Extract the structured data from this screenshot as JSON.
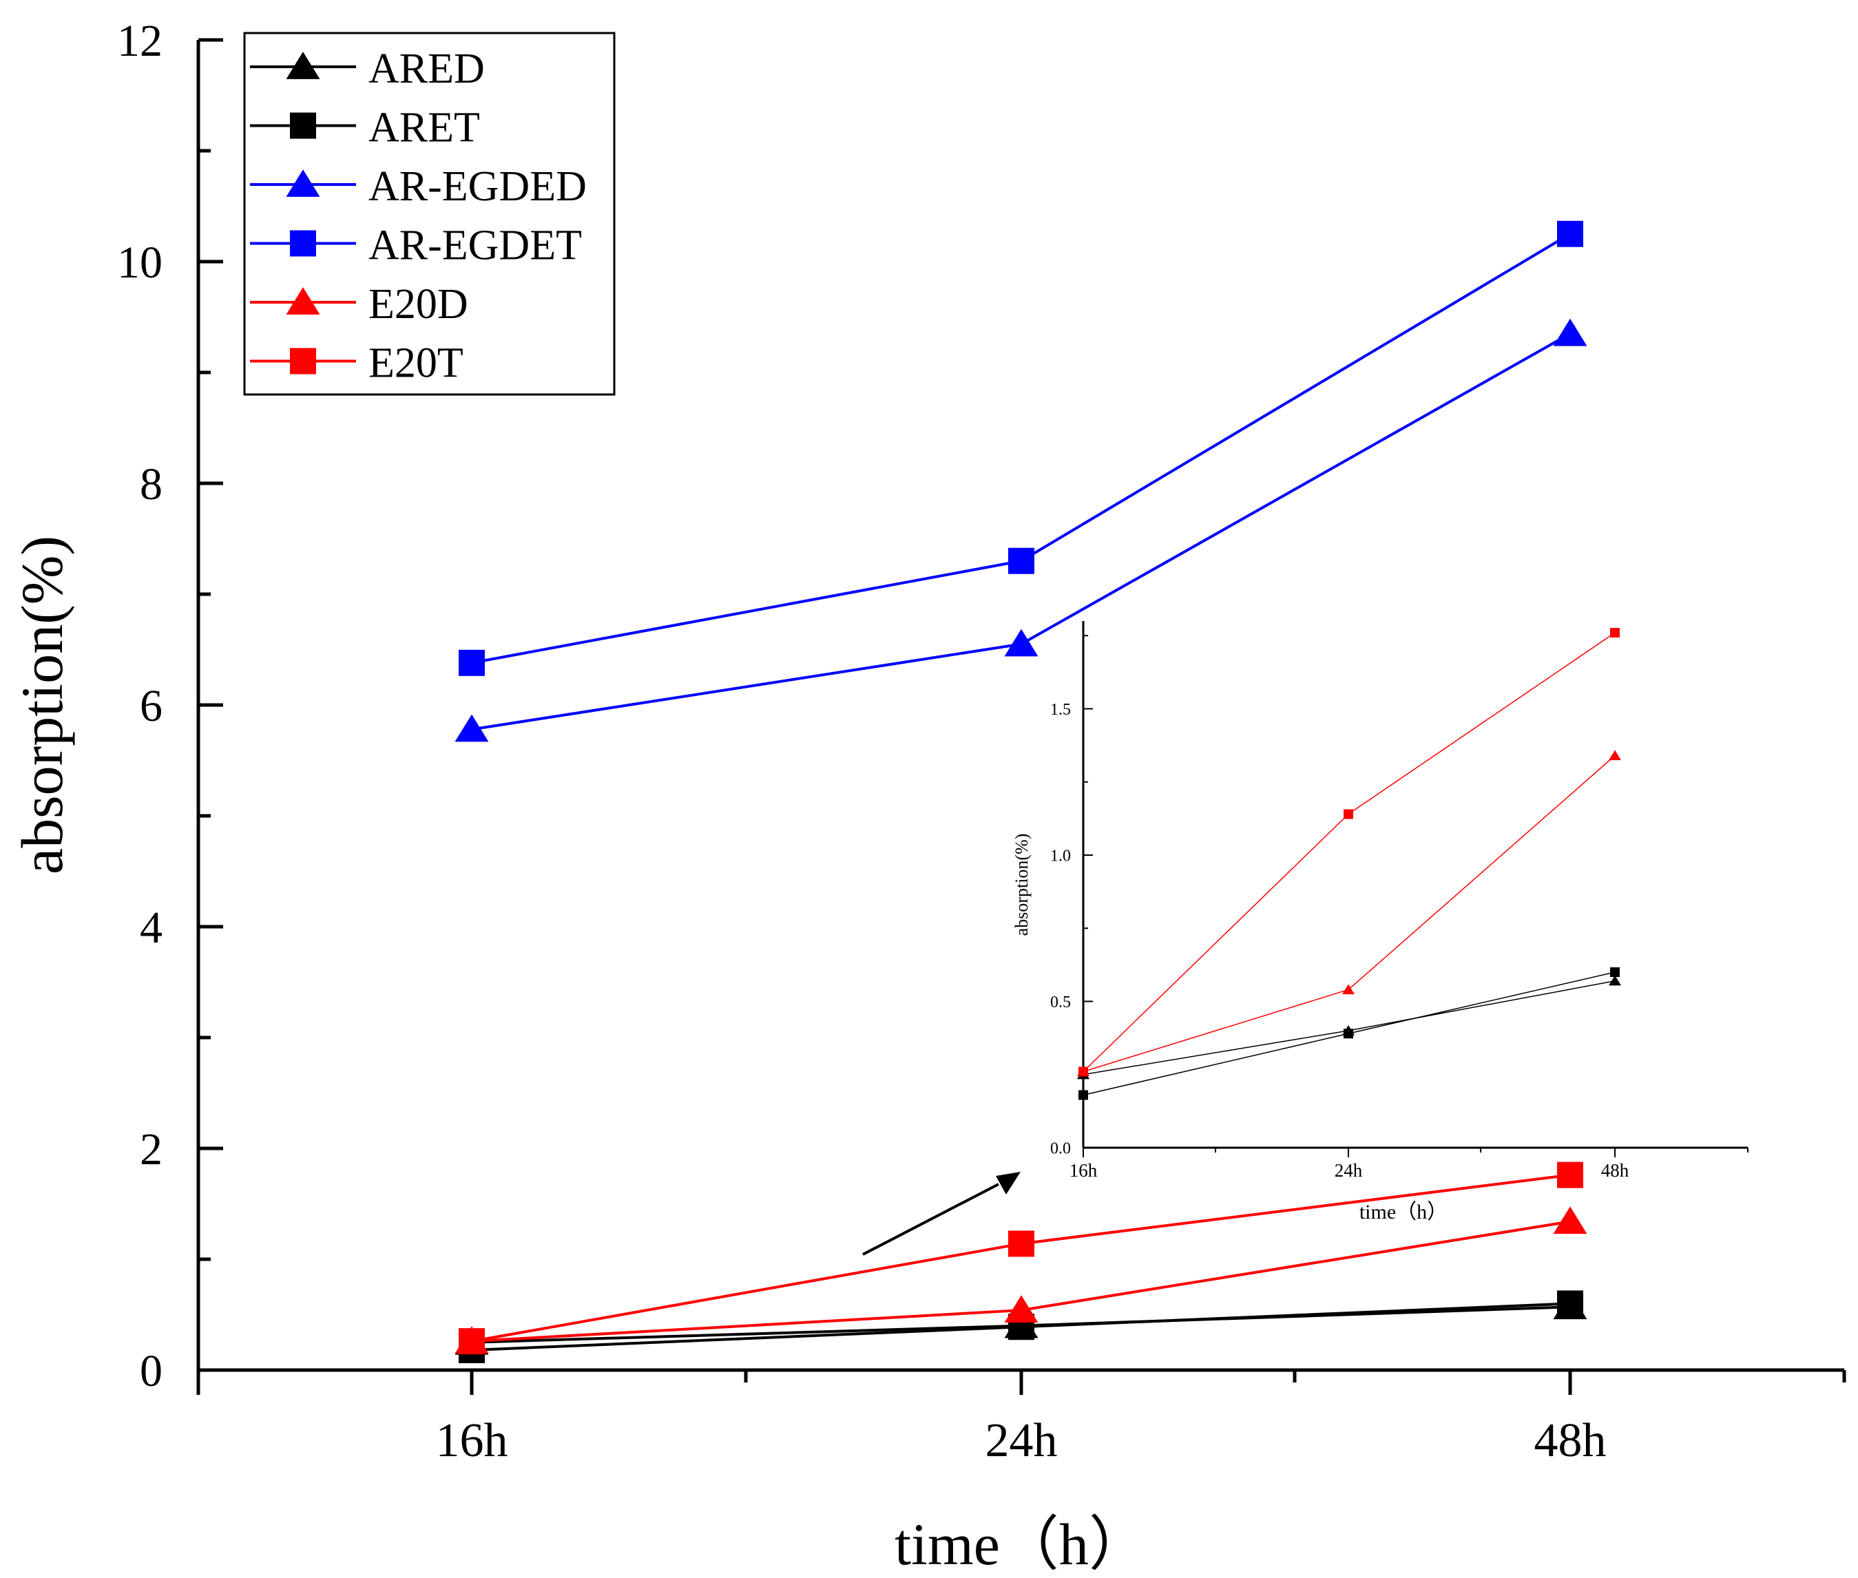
{
  "chart_data": [
    {
      "id": "main",
      "type": "line",
      "title": "",
      "xlabel": "time（h）",
      "ylabel": "absorption(%)",
      "categories": [
        "16h",
        "24h",
        "48h"
      ],
      "ylim": [
        0,
        12
      ],
      "yticks": [
        0,
        2,
        4,
        6,
        8,
        10,
        12
      ],
      "grid": false,
      "legend_position": "top-left",
      "series": [
        {
          "name": "ARED",
          "color": "#000000",
          "marker": "triangle",
          "values": [
            0.25,
            0.4,
            0.57
          ]
        },
        {
          "name": "ARET",
          "color": "#000000",
          "marker": "square",
          "values": [
            0.18,
            0.39,
            0.6
          ]
        },
        {
          "name": "AR-EGDED",
          "color": "#0000ff",
          "marker": "triangle",
          "values": [
            5.78,
            6.55,
            9.35
          ]
        },
        {
          "name": "AR-EGDET",
          "color": "#0000ff",
          "marker": "square",
          "values": [
            6.38,
            7.3,
            10.25
          ]
        },
        {
          "name": "E20D",
          "color": "#ff0000",
          "marker": "triangle",
          "values": [
            0.26,
            0.54,
            1.34
          ]
        },
        {
          "name": "E20T",
          "color": "#ff0000",
          "marker": "square",
          "values": [
            0.26,
            1.14,
            1.76
          ]
        }
      ]
    },
    {
      "id": "inset",
      "type": "line",
      "title": "",
      "xlabel": "time（h）",
      "ylabel": "absorption(%)",
      "categories": [
        "16h",
        "24h",
        "48h"
      ],
      "ylim": [
        0,
        1.8
      ],
      "yticks": [
        0.0,
        0.5,
        1.0,
        1.5
      ],
      "ytick_labels": [
        "0.0",
        "0.5",
        "1.0",
        "1.5"
      ],
      "grid": false,
      "series": [
        {
          "name": "ARED",
          "color": "#000000",
          "marker": "triangle",
          "values": [
            0.25,
            0.4,
            0.57
          ]
        },
        {
          "name": "ARET",
          "color": "#000000",
          "marker": "square",
          "values": [
            0.18,
            0.39,
            0.6
          ]
        },
        {
          "name": "E20D",
          "color": "#ff0000",
          "marker": "triangle",
          "values": [
            0.26,
            0.54,
            1.34
          ]
        },
        {
          "name": "E20T",
          "color": "#ff0000",
          "marker": "square",
          "values": [
            0.26,
            1.14,
            1.76
          ]
        }
      ]
    }
  ]
}
